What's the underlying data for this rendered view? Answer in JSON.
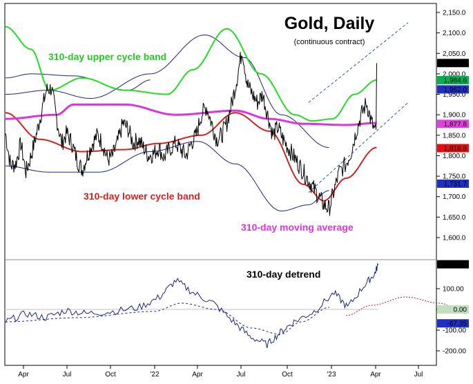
{
  "chart_data": [
    {
      "type": "line",
      "title": "Gold, Daily",
      "subtitle": "(continuous contract)",
      "xlabel": "",
      "ylabel": "",
      "x_ticks": [
        "Apr",
        "Jul",
        "Oct",
        "'22",
        "Apr",
        "Jul",
        "Oct",
        "'23",
        "Apr",
        "Jul"
      ],
      "y_ticks": [
        "2,150.0",
        "2,100.0",
        "2,050.0",
        "2,000.0",
        "1,950.0",
        "1,900.0",
        "1,850.0",
        "1,800.0",
        "1,750.0",
        "1,700.0",
        "1,650.0",
        "1,600.0"
      ],
      "ylim": [
        1560,
        2170
      ],
      "grid": false,
      "annotations": {
        "upper_band": "310-day upper cycle band",
        "lower_band": "310-day lower cycle band",
        "moving_average": "310-day moving average"
      },
      "value_labels": [
        {
          "text": "2,026.4",
          "value": 2026.4,
          "color": "#000000"
        },
        {
          "text": "1,984.6",
          "value": 1984.6,
          "color": "#00b050"
        },
        {
          "text": "1,962.0",
          "value": 1962.0,
          "color": "#1f2fbf"
        },
        {
          "text": "1,877.8",
          "value": 1877.8,
          "color": "#e040e0"
        },
        {
          "text": "1,818.5",
          "value": 1818.5,
          "color": "#e01010"
        },
        {
          "text": "1,731.7",
          "value": 1731.7,
          "color": "#1f2fbf"
        }
      ],
      "colors": {
        "price": "#000000",
        "upper_band": "#22dd22",
        "lower_band": "#d62020",
        "moving_average": "#dd33dd",
        "outer_band": "#1a237e",
        "trend_line": "#3050c0"
      },
      "series": [
        {
          "x": [
            0,
            0.03,
            0.06,
            0.09,
            0.12,
            0.15,
            0.18,
            0.21,
            0.24,
            0.27,
            0.3,
            0.33,
            0.36,
            0.39,
            0.42,
            0.45,
            0.48,
            0.51,
            0.54,
            0.57,
            0.6,
            0.63,
            0.66,
            0.69,
            0.72,
            0.75,
            0.78,
            0.81,
            0.84,
            0.87,
            0.9,
            0.93,
            0.96,
            1.0,
            1.03,
            1.06,
            1.09,
            1.12,
            1.15,
            1.18,
            1.21,
            1.24,
            1.27,
            1.3,
            1.33,
            1.36,
            1.39,
            1.42,
            1.45,
            1.48,
            1.51,
            1.54,
            1.57,
            1.6,
            1.63,
            1.66,
            1.69,
            1.72,
            1.75,
            1.78,
            1.81,
            1.84,
            1.87,
            1.9,
            1.93,
            1.96,
            2.0,
            2.03,
            2.06,
            2.09,
            2.12,
            2.15,
            2.18
          ],
          "values": [
            1855,
            1775,
            1780,
            1830,
            1760,
            1800,
            1850,
            1905,
            1960,
            1965,
            1890,
            1830,
            1855,
            1830,
            1790,
            1765,
            1800,
            1830,
            1850,
            1830,
            1790,
            1800,
            1835,
            1880,
            1865,
            1830,
            1840,
            1820,
            1800,
            1805,
            1820,
            1795,
            1815,
            1830,
            1815,
            1800,
            1830,
            1850,
            1900,
            1920,
            1880,
            1840,
            1850,
            1880,
            1930,
            1990,
            2060,
            1975,
            1950,
            1930,
            1950,
            1900,
            1850,
            1870,
            1840,
            1820,
            1800,
            1780,
            1760,
            1740,
            1720,
            1700,
            1680,
            1670,
            1715,
            1760,
            1780,
            1810,
            1860,
            1900,
            1930,
            1880,
            1850
          ]
        }
      ]
    },
    {
      "type": "line",
      "title": "310-day detrend",
      "x_ticks": [
        "Apr",
        "Jul",
        "Oct",
        "'22",
        "Apr",
        "Jul",
        "Oct",
        "'23",
        "Apr",
        "Jul"
      ],
      "y_ticks": [
        "100.00",
        "0.00",
        "-100.00",
        "-200.00"
      ],
      "ylim": [
        -235,
        245
      ],
      "value_labels": [
        {
          "text": "217.82",
          "value": 217.82,
          "color": "#000000"
        },
        {
          "text": "0.00",
          "value": 0.0,
          "color": "#c0e0c0"
        },
        {
          "text": "-67.35",
          "value": -67.35,
          "color": "#1f2fbf"
        }
      ]
    }
  ]
}
